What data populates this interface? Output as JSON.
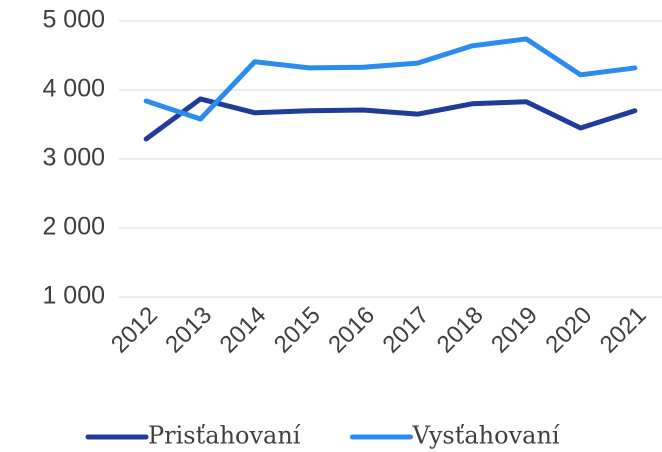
{
  "chart_data": {
    "type": "line",
    "categories": [
      "2012",
      "2013",
      "2014",
      "2015",
      "2016",
      "2017",
      "2018",
      "2019",
      "2020",
      "2021"
    ],
    "series": [
      {
        "name": "Prisťahovaní",
        "color": "#203c9a",
        "values": [
          3290,
          3870,
          3670,
          3700,
          3710,
          3650,
          3800,
          3830,
          3450,
          3700
        ]
      },
      {
        "name": "Vysťahovaní",
        "color": "#2b8cf0",
        "values": [
          3840,
          3580,
          4410,
          4320,
          4330,
          4390,
          4640,
          4740,
          4220,
          4320
        ]
      }
    ],
    "ylim": [
      1000,
      5000
    ],
    "yticks": [
      {
        "value": 1000,
        "label": "1 000"
      },
      {
        "value": 2000,
        "label": "2 000"
      },
      {
        "value": 3000,
        "label": "3 000"
      },
      {
        "value": 4000,
        "label": "4 000"
      },
      {
        "value": 5000,
        "label": "5 000"
      }
    ],
    "grid": true,
    "legend": "bottom"
  }
}
